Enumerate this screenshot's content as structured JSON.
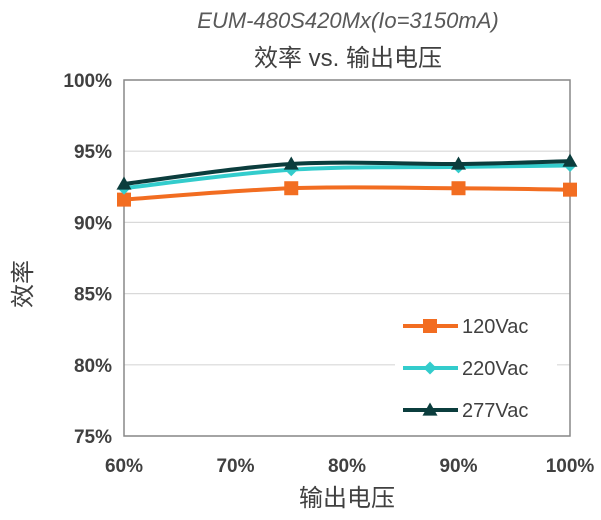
{
  "chart_data": {
    "type": "line",
    "title": "EUM-480S420Mx(Io=3150mA)",
    "subtitle": "效率 vs. 输出电压",
    "xlabel": "输出电压",
    "ylabel": "效率",
    "x": [
      "60%",
      "75%",
      "90%",
      "100%"
    ],
    "x_values": [
      60,
      75,
      90,
      100
    ],
    "xlim": [
      60,
      100
    ],
    "xticks": [
      "60%",
      "70%",
      "80%",
      "90%",
      "100%"
    ],
    "xtick_values": [
      60,
      70,
      80,
      90,
      100
    ],
    "ylim": [
      75,
      100
    ],
    "yticks": [
      "75%",
      "80%",
      "85%",
      "90%",
      "95%",
      "100%"
    ],
    "ytick_values": [
      75,
      80,
      85,
      90,
      95,
      100
    ],
    "grid": "horizontal",
    "legend_position": "bottom-right",
    "series": [
      {
        "name": "120Vac",
        "values": [
          91.6,
          92.4,
          92.4,
          92.3
        ],
        "color": "#f26d21",
        "marker": "square"
      },
      {
        "name": "220Vac",
        "values": [
          92.4,
          93.7,
          93.9,
          94.0
        ],
        "color": "#33cccc",
        "marker": "diamond"
      },
      {
        "name": "277Vac",
        "values": [
          92.7,
          94.1,
          94.1,
          94.3
        ],
        "color": "#0b3d3d",
        "marker": "triangle"
      }
    ]
  }
}
